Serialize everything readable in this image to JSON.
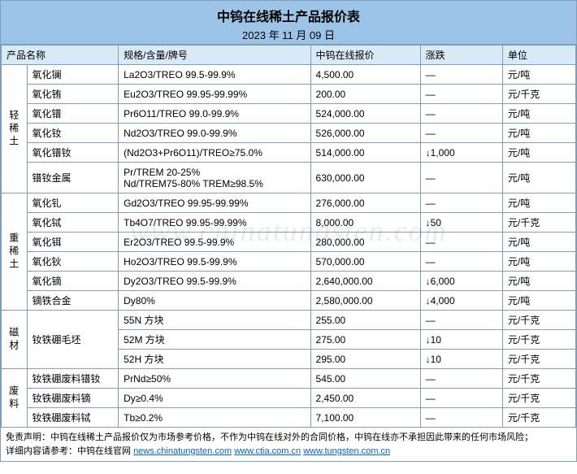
{
  "header": {
    "title": "中钨在线稀土产品报价表",
    "date": "2023 年 11 月 09 日"
  },
  "columns": {
    "name": "产品名称",
    "spec": "规格/含量/牌号",
    "price": "中钨在线报价",
    "change": "涨跌",
    "unit": "单位"
  },
  "categories": [
    {
      "label": "轻稀土",
      "rows": [
        {
          "name": "氧化镧",
          "spec": "La2O3/TREO 99.5-99.9%",
          "price": "4,500.00",
          "change": "—",
          "unit": "元/吨"
        },
        {
          "name": "氧化铕",
          "spec": "Eu2O3/TREO 99.95-99.99%",
          "price": "200.00",
          "change": "—",
          "unit": "元/千克"
        },
        {
          "name": "氧化镨",
          "spec": "Pr6O11/TREO 99.0-99.9%",
          "price": "524,000.00",
          "change": "—",
          "unit": "元/吨"
        },
        {
          "name": "氧化钕",
          "spec": "Nd2O3/TREO 99.0-99.9%",
          "price": "526,000.00",
          "change": "—",
          "unit": "元/吨"
        },
        {
          "name": "氧化镨钕",
          "spec": "(Nd2O3+Pr6O11)/TREO≥75.0%",
          "price": "514,000.00",
          "change": "↓1,000",
          "unit": "元/吨"
        },
        {
          "name": "镨钕金属",
          "spec": "Pr/TREM 20-25%\nNd/TREM75-80% TREM≥98.5%",
          "price": "630,000.00",
          "change": "—",
          "unit": "元/吨",
          "tall": true
        }
      ]
    },
    {
      "label": "重稀土",
      "rows": [
        {
          "name": "氧化钆",
          "spec": "Gd2O3/TREO 99.95-99.99%",
          "price": "276,000.00",
          "change": "—",
          "unit": "元/吨"
        },
        {
          "name": "氧化铽",
          "spec": "Tb4O7/TREO 99.95-99.99%",
          "price": "8,000.00",
          "change": "↓50",
          "unit": "元/千克"
        },
        {
          "name": "氧化铒",
          "spec": "Er2O3/TREO 99.5-99.9%",
          "price": "280,000.00",
          "change": "—",
          "unit": "元/吨"
        },
        {
          "name": "氧化钬",
          "spec": "Ho2O3/TREO 99.5-99.9%",
          "price": "570,000.00",
          "change": "—",
          "unit": "元/吨"
        },
        {
          "name": "氧化镝",
          "spec": "Dy2O3/TREO 99.5-99.9%",
          "price": "2,640,000.00",
          "change": "↓6,000",
          "unit": "元/吨"
        },
        {
          "name": "镝铁合金",
          "spec": "Dy80%",
          "price": "2,580,000.00",
          "change": "↓4,000",
          "unit": "元/吨"
        }
      ]
    },
    {
      "label": "磁材",
      "rows": [
        {
          "name": "钕铁硼毛坯",
          "spec": "55N 方块",
          "price": "255.00",
          "change": "—",
          "unit": "元/千克",
          "namespan": 3
        },
        {
          "spec": "52M 方块",
          "price": "275.00",
          "change": "↓10",
          "unit": "元/千克"
        },
        {
          "spec": "52H 方块",
          "price": "295.00",
          "change": "↓10",
          "unit": "元/千克"
        }
      ]
    },
    {
      "label": "废料",
      "rows": [
        {
          "name": "钕铁硼废料镨钕",
          "spec": "PrNd≥50%",
          "price": "545.00",
          "change": "—",
          "unit": "元/千克"
        },
        {
          "name": "钕铁硼废料镝",
          "spec": "Dy≥0.4%",
          "price": "2,450.00",
          "change": "—",
          "unit": "元/千克"
        },
        {
          "name": "钕铁硼废料铽",
          "spec": "Tb≥0.2%",
          "price": "7,100.00",
          "change": "—",
          "unit": "元/千克"
        }
      ]
    }
  ],
  "footnote": {
    "line1": "免责声明：中钨在线稀土产品报价仅为市场参考价格，不作为中钨在线对外的合同价格，中钨在线亦不承担因此带来的任何市场风险；",
    "line2_prefix": "详细内容请参考：中钨在线官网 ",
    "link1": "news.chinatungsten.com",
    "sep": "  ",
    "link2": "www.ctia.com.cn",
    "sep2": "  ",
    "link3": "www.tungsten.com.cn"
  },
  "watermark": "www.chinatungsten.com",
  "colors": {
    "header_bg": "#9dc3e6",
    "th_bg": "#dae9f6",
    "border": "#7b9ebd",
    "link": "#0563c1"
  }
}
